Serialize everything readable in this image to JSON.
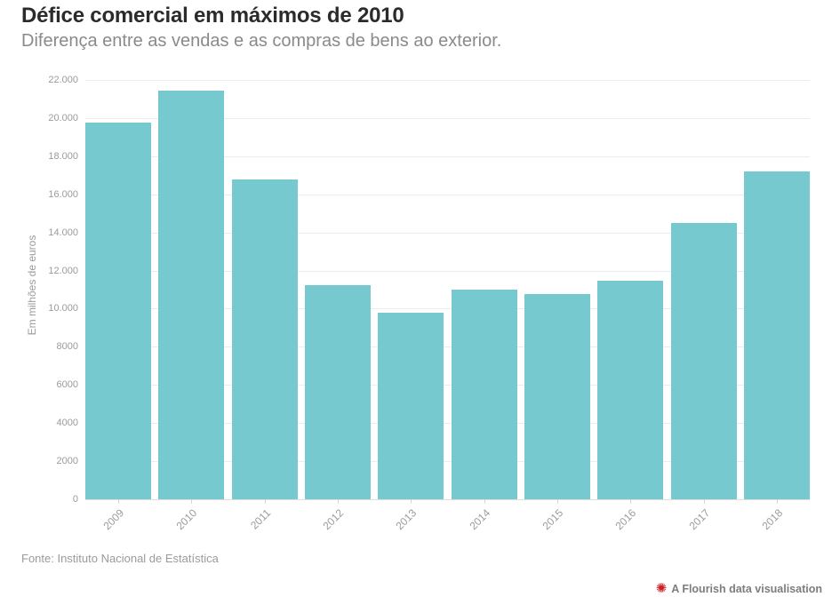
{
  "header": {
    "title": "Défice comercial em máximos de 2010",
    "subtitle": "Diferença entre as vendas e as compras de bens ao exterior."
  },
  "chart_data": {
    "type": "bar",
    "title": "Défice comercial em máximos de 2010",
    "subtitle": "Diferença entre as vendas e as compras de bens ao exterior.",
    "categories": [
      "2009",
      "2010",
      "2011",
      "2012",
      "2013",
      "2014",
      "2015",
      "2016",
      "2017",
      "2018"
    ],
    "values": [
      19750,
      21430,
      16780,
      11220,
      9800,
      11000,
      10780,
      11470,
      14500,
      17200
    ],
    "xlabel": "",
    "ylabel": "Em milhões de euros",
    "ylim": [
      0,
      22000
    ],
    "ytick_values": [
      0,
      2000,
      4000,
      6000,
      8000,
      10000,
      12000,
      14000,
      16000,
      18000,
      20000,
      22000
    ],
    "ytick_labels": [
      "0",
      "2000",
      "4000",
      "6000",
      "8000",
      "10.000",
      "12.000",
      "14.000",
      "16.000",
      "18.000",
      "20.000",
      "22.000"
    ],
    "grid": true,
    "legend": "none",
    "bar_color": "#76c9ce"
  },
  "footer": {
    "source": "Fonte: Instituto Nacional de Estatística",
    "credit": "A Flourish data visualisation",
    "credit_icon": "✺"
  },
  "colors": {
    "bar": "#76c9ce",
    "gridline": "#ececec",
    "tick_text": "#9b9b9b",
    "title_text": "#2b2b2b",
    "subtitle_text": "#8a8a8a",
    "credit_icon": "#cb2026"
  }
}
